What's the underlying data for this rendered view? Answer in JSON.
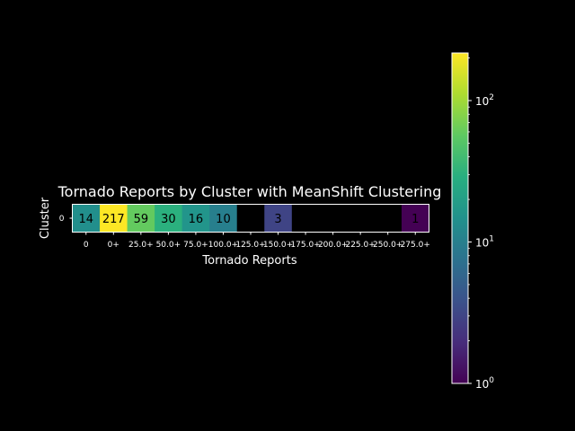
{
  "chart_data": {
    "type": "heatmap",
    "title": "Tornado Reports by Cluster with MeanShift Clustering",
    "xlabel": "Tornado Reports",
    "ylabel": "Cluster",
    "rows": [
      "0"
    ],
    "columns": [
      "0",
      "0+",
      "25.0+",
      "50.0+",
      "75.0+",
      "100.0+",
      "125.0+",
      "150.0+",
      "175.0+",
      "200.0+",
      "225.0+",
      "250.0+",
      "275.0+"
    ],
    "values": [
      [
        14,
        217,
        59,
        30,
        16,
        10,
        null,
        3,
        null,
        null,
        null,
        null,
        1
      ]
    ],
    "colorbar": {
      "scale": "log",
      "range": [
        1,
        217
      ],
      "colormap": "viridis",
      "ticks": [
        {
          "base": "10",
          "exp": "0"
        },
        {
          "base": "10",
          "exp": "1"
        },
        {
          "base": "10",
          "exp": "2"
        }
      ]
    },
    "background": "#000000",
    "empty_cell_color": "#000000"
  }
}
